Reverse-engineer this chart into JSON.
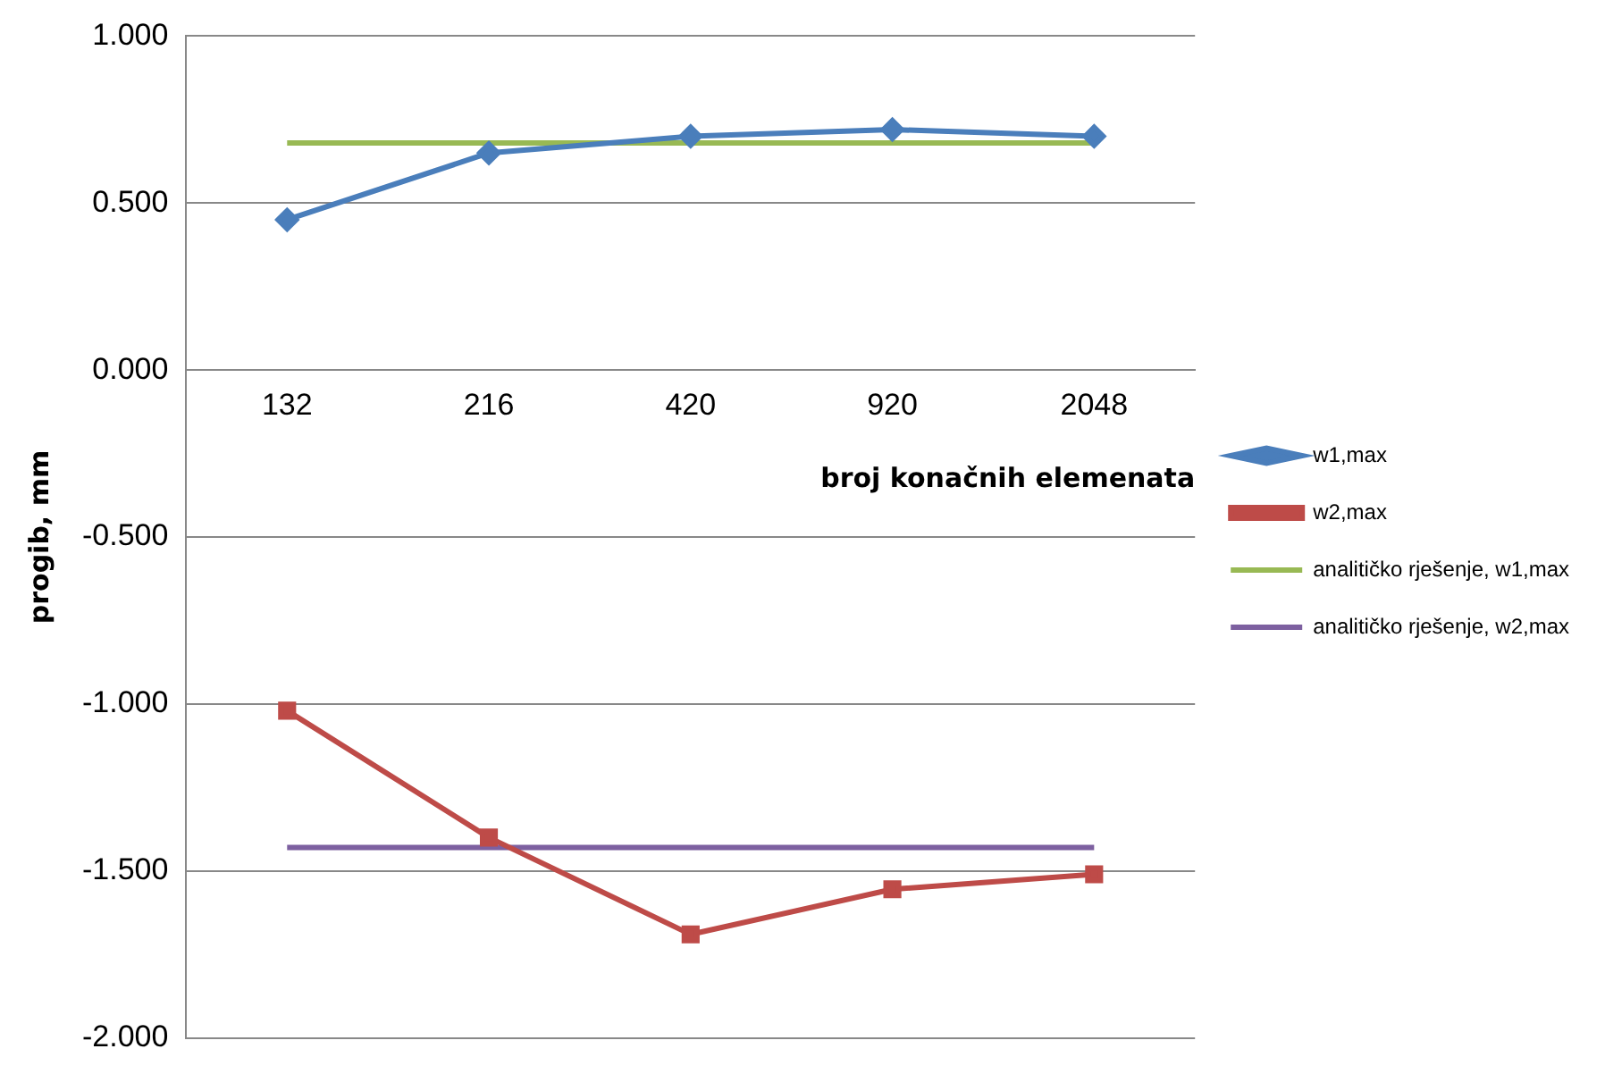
{
  "chart_data": {
    "type": "line",
    "xlabel": "broj konačnih elemenata",
    "ylabel": "progib, mm",
    "categories": [
      "132",
      "216",
      "420",
      "920",
      "2048"
    ],
    "series": [
      {
        "name": "w1,max",
        "color": "#4a7ebb",
        "marker": "diamond",
        "values": [
          0.45,
          0.65,
          0.7,
          0.72,
          0.7
        ]
      },
      {
        "name": "w2,max",
        "color": "#be4b48",
        "marker": "square",
        "values": [
          -1.02,
          -1.4,
          -1.69,
          -1.555,
          -1.51
        ]
      },
      {
        "name": "analitičko rješenje, w1,max",
        "color": "#98b954",
        "marker": "none",
        "values": [
          0.68,
          0.68,
          0.68,
          0.68,
          0.68
        ]
      },
      {
        "name": "analitičko rješenje, w2,max",
        "color": "#7d60a0",
        "marker": "none",
        "values": [
          -1.43,
          -1.43,
          -1.43,
          -1.43,
          -1.43
        ]
      }
    ],
    "ylim": [
      -2,
      1
    ],
    "yticks": [
      {
        "value": -2,
        "label": "-2.000"
      },
      {
        "value": -1.5,
        "label": "-1.500"
      },
      {
        "value": -1,
        "label": "-1.000"
      },
      {
        "value": -0.5,
        "label": "-0.500"
      },
      {
        "value": 0,
        "label": "0.000"
      },
      {
        "value": 0.5,
        "label": "0.500"
      },
      {
        "value": 1,
        "label": "1.000"
      }
    ],
    "grid": "y",
    "legend": "right",
    "line_style": "solid"
  }
}
